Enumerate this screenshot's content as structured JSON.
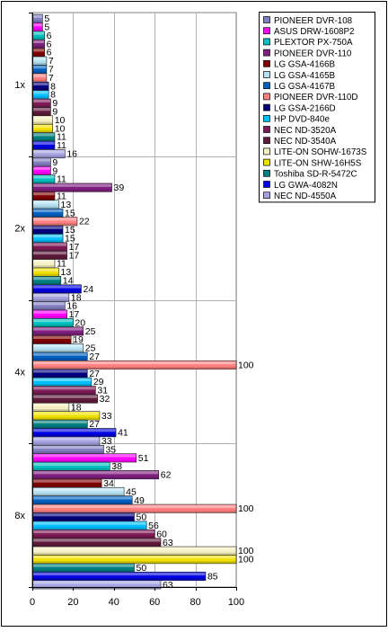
{
  "chart_data": {
    "type": "bar",
    "orientation": "horizontal",
    "title": "",
    "xlabel": "",
    "ylabel": "",
    "xlim": [
      0,
      100
    ],
    "x_ticks": [
      "0",
      "20",
      "40",
      "60",
      "80",
      "100"
    ],
    "grid": "vertical",
    "legend_position": "top-right",
    "categories": [
      "1x",
      "2x",
      "4x",
      "8x"
    ],
    "series": [
      {
        "name": "PIONEER DVR-108",
        "color": "#7f7fbf",
        "values": [
          5,
          9,
          16,
          35
        ]
      },
      {
        "name": "ASUS DRW-1608P2",
        "color": "#ff00ff",
        "values": [
          5,
          9,
          17,
          51
        ]
      },
      {
        "name": "PLEXTOR PX-750A",
        "color": "#00bfbf",
        "values": [
          6,
          11,
          20,
          38
        ]
      },
      {
        "name": "PIONEER DVR-110",
        "color": "#7f1f7f",
        "values": [
          6,
          39,
          25,
          62
        ]
      },
      {
        "name": "LG GSA-4166B",
        "color": "#7f0000",
        "values": [
          6,
          11,
          19,
          34
        ]
      },
      {
        "name": "LG GSA-4165B",
        "color": "#b4e0f0",
        "values": [
          7,
          13,
          25,
          45
        ]
      },
      {
        "name": "LG GSA-4167B",
        "color": "#0060bf",
        "values": [
          7,
          15,
          27,
          49
        ]
      },
      {
        "name": "PIONEER DVR-110D",
        "color": "#ff8080",
        "values": [
          7,
          22,
          100,
          100
        ]
      },
      {
        "name": "LG GSA-2166D",
        "color": "#00007f",
        "values": [
          8,
          15,
          27,
          50
        ]
      },
      {
        "name": "HP DVD-840e",
        "color": "#00bfff",
        "values": [
          8,
          15,
          29,
          56
        ]
      },
      {
        "name": "NEC ND-3520A",
        "color": "#801a57",
        "values": [
          9,
          17,
          31,
          60
        ]
      },
      {
        "name": "NEC ND-3540A",
        "color": "#601a3a",
        "values": [
          9,
          17,
          32,
          63
        ]
      },
      {
        "name": "LITE-ON SOHW-1673S",
        "color": "#f4f0c0",
        "values": [
          10,
          11,
          18,
          100
        ]
      },
      {
        "name": "LITE-ON SHW-16H5S",
        "color": "#f0e000",
        "values": [
          10,
          13,
          33,
          100
        ]
      },
      {
        "name": "Toshiba SD-R-5472C",
        "color": "#008080",
        "values": [
          11,
          14,
          27,
          50
        ]
      },
      {
        "name": "LG GWA-4082N",
        "color": "#0000e0",
        "values": [
          11,
          24,
          41,
          85
        ]
      },
      {
        "name": "NEC ND-4550A",
        "color": "#a4a4e0",
        "values": [
          16,
          18,
          33,
          63
        ]
      }
    ]
  }
}
